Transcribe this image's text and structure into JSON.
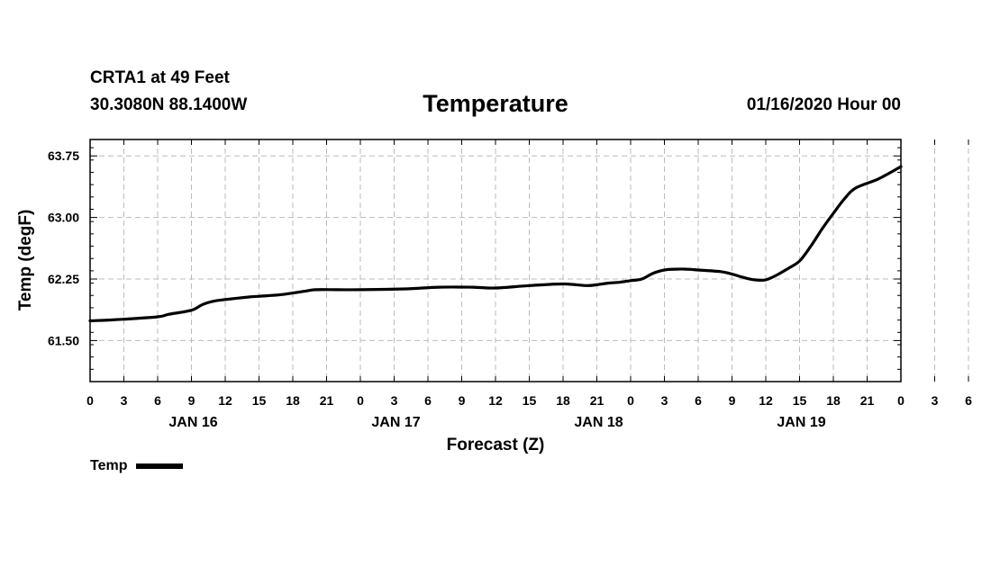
{
  "header": {
    "station": "CRTA1 at 49 Feet",
    "coordinates": "30.3080N 88.1400W",
    "title": "Temperature",
    "run_time": "01/16/2020 Hour 00"
  },
  "legend": {
    "label": "Temp",
    "color": "#000000"
  },
  "chart_data": {
    "type": "line",
    "title": "Temperature",
    "xlabel": "Forecast (Z)",
    "ylabel": "Temp (degF)",
    "xlim": [
      0,
      72
    ],
    "ylim": [
      61.0,
      63.95
    ],
    "grid": true,
    "x_tick_labels": [
      "0",
      "3",
      "6",
      "9",
      "12",
      "15",
      "18",
      "21",
      "0",
      "3",
      "6",
      "9",
      "12",
      "15",
      "18",
      "21",
      "0",
      "3",
      "6",
      "9",
      "12",
      "15",
      "18",
      "21",
      "0",
      "3",
      "6",
      "9",
      "12",
      "15",
      "18",
      "21",
      "0"
    ],
    "day_labels": [
      {
        "label": "JAN 16",
        "hour": 9
      },
      {
        "label": "JAN 17",
        "hour": 27
      },
      {
        "label": "JAN 18",
        "hour": 45
      },
      {
        "label": "JAN 19",
        "hour": 63
      }
    ],
    "y_ticks": [
      {
        "value": 61.5,
        "label": "61.50"
      },
      {
        "value": 62.25,
        "label": "62.25"
      },
      {
        "value": 63.0,
        "label": "63.00"
      },
      {
        "value": 63.75,
        "label": "63.75"
      }
    ],
    "series": [
      {
        "name": "Temp",
        "color": "#000000",
        "x": [
          0,
          3,
          6,
          7,
          9,
          10,
          11,
          12,
          14,
          15,
          17,
          19,
          20,
          22,
          24,
          28,
          31,
          34,
          36,
          39,
          42,
          44,
          45,
          46,
          47,
          48,
          49,
          50,
          51,
          52,
          53,
          54,
          56,
          57,
          58,
          59,
          60,
          61,
          62,
          63,
          64,
          65,
          66,
          67,
          68,
          70,
          72
        ],
        "values": [
          61.74,
          61.76,
          61.79,
          61.82,
          61.87,
          61.94,
          61.98,
          62.0,
          62.03,
          62.04,
          62.06,
          62.1,
          62.12,
          62.12,
          62.12,
          62.13,
          62.15,
          62.15,
          62.14,
          62.17,
          62.19,
          62.17,
          62.18,
          62.2,
          62.21,
          62.23,
          62.25,
          62.32,
          62.36,
          62.37,
          62.37,
          62.36,
          62.34,
          62.31,
          62.27,
          62.24,
          62.24,
          62.3,
          62.38,
          62.47,
          62.65,
          62.86,
          63.05,
          63.23,
          63.36,
          63.47,
          63.62
        ]
      }
    ]
  }
}
